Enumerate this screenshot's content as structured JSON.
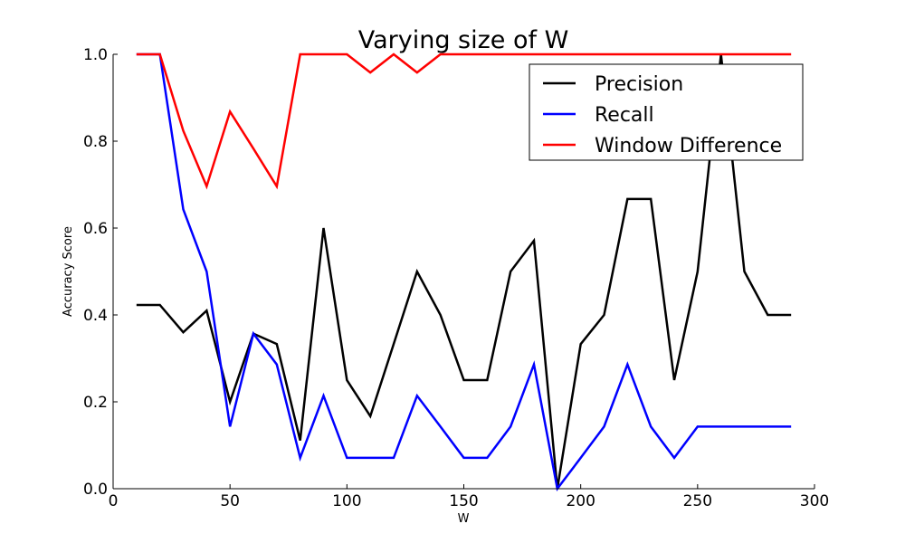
{
  "chart_data": {
    "type": "line",
    "title": "Varying size of W",
    "xlabel": "W",
    "ylabel": "Accuracy Score",
    "xlim": [
      0,
      300
    ],
    "ylim": [
      0.0,
      1.0
    ],
    "xticks": [
      0,
      50,
      100,
      150,
      200,
      250,
      300
    ],
    "yticks": [
      0.0,
      0.2,
      0.4,
      0.6,
      0.8,
      1.0
    ],
    "xtick_labels": [
      "0",
      "50",
      "100",
      "150",
      "200",
      "250",
      "300"
    ],
    "ytick_labels": [
      "0.0",
      "0.2",
      "0.4",
      "0.6",
      "0.8",
      "1.0"
    ],
    "x": [
      10,
      20,
      30,
      40,
      50,
      60,
      70,
      80,
      90,
      100,
      110,
      120,
      130,
      140,
      150,
      160,
      170,
      180,
      190,
      200,
      210,
      220,
      230,
      240,
      250,
      260,
      270,
      280,
      290
    ],
    "series": [
      {
        "name": "Precision",
        "color": "#000000",
        "values": [
          0.423,
          0.423,
          0.36,
          0.41,
          0.2,
          0.357,
          0.333,
          0.111,
          0.6,
          0.25,
          0.167,
          0.333,
          0.5,
          0.4,
          0.25,
          0.25,
          0.5,
          0.571,
          0.0,
          0.333,
          0.4,
          0.667,
          0.667,
          0.25,
          0.5,
          1.0,
          0.5,
          0.4,
          0.4
        ]
      },
      {
        "name": "Recall",
        "color": "#0000ff",
        "values": [
          1.0,
          1.0,
          0.643,
          0.5,
          0.143,
          0.357,
          0.286,
          0.071,
          0.214,
          0.071,
          0.071,
          0.071,
          0.214,
          0.143,
          0.071,
          0.071,
          0.143,
          0.286,
          0.0,
          0.071,
          0.143,
          0.286,
          0.143,
          0.071,
          0.143,
          0.143,
          0.143,
          0.143,
          0.143
        ]
      },
      {
        "name": "Window Difference",
        "color": "#ff0000",
        "values": [
          1.0,
          1.0,
          0.824,
          0.696,
          0.868,
          0.783,
          0.696,
          1.0,
          1.0,
          1.0,
          0.958,
          1.0,
          0.958,
          1.0,
          1.0,
          1.0,
          1.0,
          1.0,
          1.0,
          1.0,
          1.0,
          1.0,
          1.0,
          1.0,
          1.0,
          1.0,
          1.0,
          1.0,
          1.0
        ]
      }
    ],
    "legend": "top-right",
    "grid": false
  }
}
